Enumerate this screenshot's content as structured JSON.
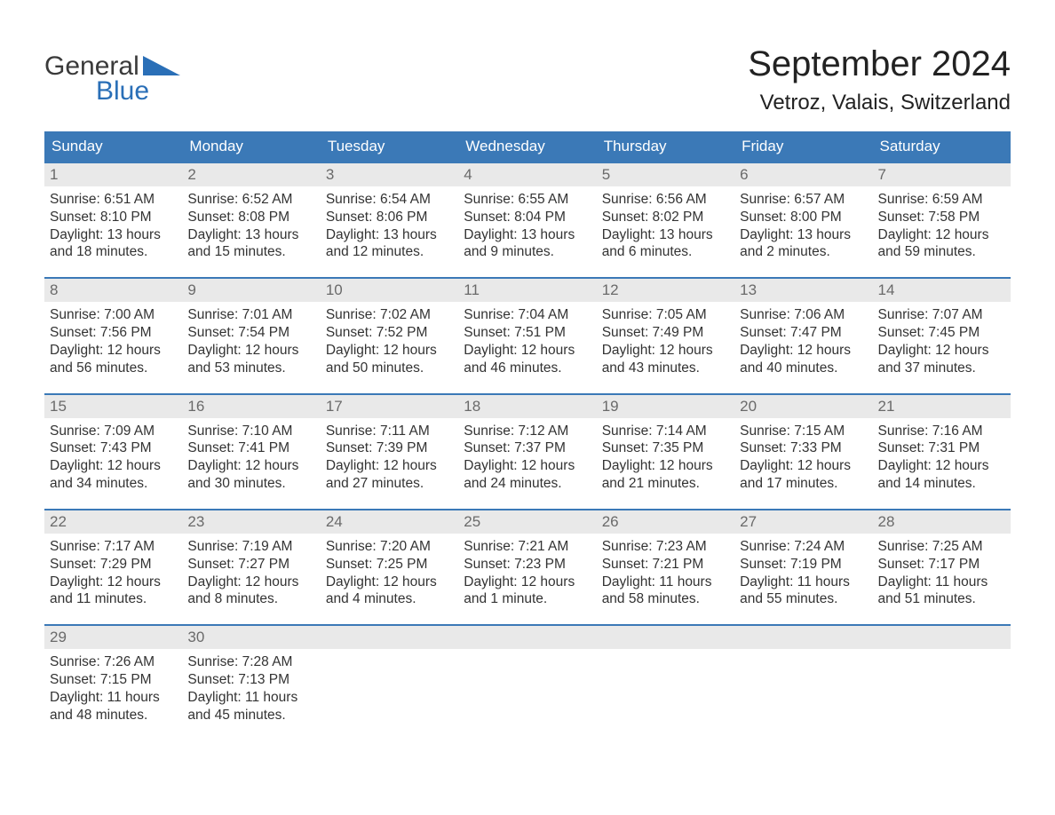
{
  "logo": {
    "word1": "General",
    "word2": "Blue"
  },
  "title": "September 2024",
  "subtitle": "Vetroz, Valais, Switzerland",
  "colors": {
    "header_bg": "#3b79b7",
    "header_text": "#ffffff",
    "daynum_bg": "#e9e9e9",
    "daynum_text": "#6a6a6a",
    "body_text": "#333333",
    "week_border": "#3b79b7",
    "logo_blue": "#2a6fb7",
    "page_bg": "#ffffff"
  },
  "day_names": [
    "Sunday",
    "Monday",
    "Tuesday",
    "Wednesday",
    "Thursday",
    "Friday",
    "Saturday"
  ],
  "weeks": [
    [
      {
        "day": "1",
        "sunrise": "Sunrise: 6:51 AM",
        "sunset": "Sunset: 8:10 PM",
        "daylight1": "Daylight: 13 hours",
        "daylight2": "and 18 minutes."
      },
      {
        "day": "2",
        "sunrise": "Sunrise: 6:52 AM",
        "sunset": "Sunset: 8:08 PM",
        "daylight1": "Daylight: 13 hours",
        "daylight2": "and 15 minutes."
      },
      {
        "day": "3",
        "sunrise": "Sunrise: 6:54 AM",
        "sunset": "Sunset: 8:06 PM",
        "daylight1": "Daylight: 13 hours",
        "daylight2": "and 12 minutes."
      },
      {
        "day": "4",
        "sunrise": "Sunrise: 6:55 AM",
        "sunset": "Sunset: 8:04 PM",
        "daylight1": "Daylight: 13 hours",
        "daylight2": "and 9 minutes."
      },
      {
        "day": "5",
        "sunrise": "Sunrise: 6:56 AM",
        "sunset": "Sunset: 8:02 PM",
        "daylight1": "Daylight: 13 hours",
        "daylight2": "and 6 minutes."
      },
      {
        "day": "6",
        "sunrise": "Sunrise: 6:57 AM",
        "sunset": "Sunset: 8:00 PM",
        "daylight1": "Daylight: 13 hours",
        "daylight2": "and 2 minutes."
      },
      {
        "day": "7",
        "sunrise": "Sunrise: 6:59 AM",
        "sunset": "Sunset: 7:58 PM",
        "daylight1": "Daylight: 12 hours",
        "daylight2": "and 59 minutes."
      }
    ],
    [
      {
        "day": "8",
        "sunrise": "Sunrise: 7:00 AM",
        "sunset": "Sunset: 7:56 PM",
        "daylight1": "Daylight: 12 hours",
        "daylight2": "and 56 minutes."
      },
      {
        "day": "9",
        "sunrise": "Sunrise: 7:01 AM",
        "sunset": "Sunset: 7:54 PM",
        "daylight1": "Daylight: 12 hours",
        "daylight2": "and 53 minutes."
      },
      {
        "day": "10",
        "sunrise": "Sunrise: 7:02 AM",
        "sunset": "Sunset: 7:52 PM",
        "daylight1": "Daylight: 12 hours",
        "daylight2": "and 50 minutes."
      },
      {
        "day": "11",
        "sunrise": "Sunrise: 7:04 AM",
        "sunset": "Sunset: 7:51 PM",
        "daylight1": "Daylight: 12 hours",
        "daylight2": "and 46 minutes."
      },
      {
        "day": "12",
        "sunrise": "Sunrise: 7:05 AM",
        "sunset": "Sunset: 7:49 PM",
        "daylight1": "Daylight: 12 hours",
        "daylight2": "and 43 minutes."
      },
      {
        "day": "13",
        "sunrise": "Sunrise: 7:06 AM",
        "sunset": "Sunset: 7:47 PM",
        "daylight1": "Daylight: 12 hours",
        "daylight2": "and 40 minutes."
      },
      {
        "day": "14",
        "sunrise": "Sunrise: 7:07 AM",
        "sunset": "Sunset: 7:45 PM",
        "daylight1": "Daylight: 12 hours",
        "daylight2": "and 37 minutes."
      }
    ],
    [
      {
        "day": "15",
        "sunrise": "Sunrise: 7:09 AM",
        "sunset": "Sunset: 7:43 PM",
        "daylight1": "Daylight: 12 hours",
        "daylight2": "and 34 minutes."
      },
      {
        "day": "16",
        "sunrise": "Sunrise: 7:10 AM",
        "sunset": "Sunset: 7:41 PM",
        "daylight1": "Daylight: 12 hours",
        "daylight2": "and 30 minutes."
      },
      {
        "day": "17",
        "sunrise": "Sunrise: 7:11 AM",
        "sunset": "Sunset: 7:39 PM",
        "daylight1": "Daylight: 12 hours",
        "daylight2": "and 27 minutes."
      },
      {
        "day": "18",
        "sunrise": "Sunrise: 7:12 AM",
        "sunset": "Sunset: 7:37 PM",
        "daylight1": "Daylight: 12 hours",
        "daylight2": "and 24 minutes."
      },
      {
        "day": "19",
        "sunrise": "Sunrise: 7:14 AM",
        "sunset": "Sunset: 7:35 PM",
        "daylight1": "Daylight: 12 hours",
        "daylight2": "and 21 minutes."
      },
      {
        "day": "20",
        "sunrise": "Sunrise: 7:15 AM",
        "sunset": "Sunset: 7:33 PM",
        "daylight1": "Daylight: 12 hours",
        "daylight2": "and 17 minutes."
      },
      {
        "day": "21",
        "sunrise": "Sunrise: 7:16 AM",
        "sunset": "Sunset: 7:31 PM",
        "daylight1": "Daylight: 12 hours",
        "daylight2": "and 14 minutes."
      }
    ],
    [
      {
        "day": "22",
        "sunrise": "Sunrise: 7:17 AM",
        "sunset": "Sunset: 7:29 PM",
        "daylight1": "Daylight: 12 hours",
        "daylight2": "and 11 minutes."
      },
      {
        "day": "23",
        "sunrise": "Sunrise: 7:19 AM",
        "sunset": "Sunset: 7:27 PM",
        "daylight1": "Daylight: 12 hours",
        "daylight2": "and 8 minutes."
      },
      {
        "day": "24",
        "sunrise": "Sunrise: 7:20 AM",
        "sunset": "Sunset: 7:25 PM",
        "daylight1": "Daylight: 12 hours",
        "daylight2": "and 4 minutes."
      },
      {
        "day": "25",
        "sunrise": "Sunrise: 7:21 AM",
        "sunset": "Sunset: 7:23 PM",
        "daylight1": "Daylight: 12 hours",
        "daylight2": "and 1 minute."
      },
      {
        "day": "26",
        "sunrise": "Sunrise: 7:23 AM",
        "sunset": "Sunset: 7:21 PM",
        "daylight1": "Daylight: 11 hours",
        "daylight2": "and 58 minutes."
      },
      {
        "day": "27",
        "sunrise": "Sunrise: 7:24 AM",
        "sunset": "Sunset: 7:19 PM",
        "daylight1": "Daylight: 11 hours",
        "daylight2": "and 55 minutes."
      },
      {
        "day": "28",
        "sunrise": "Sunrise: 7:25 AM",
        "sunset": "Sunset: 7:17 PM",
        "daylight1": "Daylight: 11 hours",
        "daylight2": "and 51 minutes."
      }
    ],
    [
      {
        "day": "29",
        "sunrise": "Sunrise: 7:26 AM",
        "sunset": "Sunset: 7:15 PM",
        "daylight1": "Daylight: 11 hours",
        "daylight2": "and 48 minutes."
      },
      {
        "day": "30",
        "sunrise": "Sunrise: 7:28 AM",
        "sunset": "Sunset: 7:13 PM",
        "daylight1": "Daylight: 11 hours",
        "daylight2": "and 45 minutes."
      },
      {
        "day": "",
        "sunrise": "",
        "sunset": "",
        "daylight1": "",
        "daylight2": ""
      },
      {
        "day": "",
        "sunrise": "",
        "sunset": "",
        "daylight1": "",
        "daylight2": ""
      },
      {
        "day": "",
        "sunrise": "",
        "sunset": "",
        "daylight1": "",
        "daylight2": ""
      },
      {
        "day": "",
        "sunrise": "",
        "sunset": "",
        "daylight1": "",
        "daylight2": ""
      },
      {
        "day": "",
        "sunrise": "",
        "sunset": "",
        "daylight1": "",
        "daylight2": ""
      }
    ]
  ]
}
